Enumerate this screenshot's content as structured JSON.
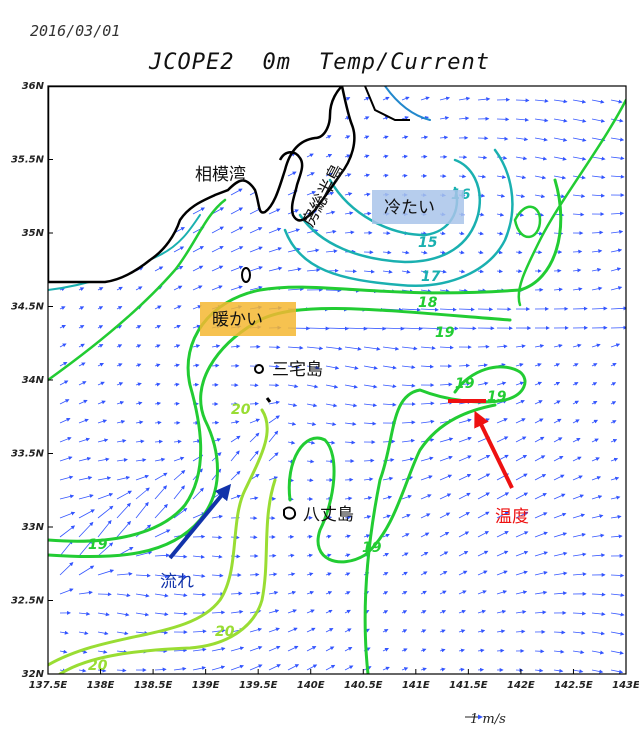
{
  "header": {
    "date": "2016/03/01",
    "model": "JCOPE2",
    "depth": "0m",
    "variables": "Temp/Current"
  },
  "axes": {
    "lat_labels": [
      "36N",
      "35.5N",
      "35N",
      "34.5N",
      "34N",
      "33.5N",
      "33N",
      "32.5N",
      "32N"
    ],
    "lon_labels": [
      "137.5E",
      "138E",
      "138.5E",
      "139E",
      "139.5E",
      "140E",
      "140.5E",
      "141E",
      "141.5E",
      "142E",
      "142.5E",
      "143E"
    ]
  },
  "contour_labels": {
    "c16": "16",
    "c15": "15",
    "c17": "17",
    "c18": "18",
    "c19a": "19",
    "c19b": "19",
    "c19c": "19",
    "c19d": "19",
    "c19e": "19",
    "c20a": "20",
    "c20b": "20",
    "c20c": "20"
  },
  "annotations": {
    "sagami_bay": "相模湾",
    "boso_peninsula": "房総半島",
    "cold": "冷たい",
    "warm": "暖かい",
    "miyakejima": "三宅島",
    "hachijojima": "八丈島",
    "flow": "流れ",
    "temperature": "温度"
  },
  "scale": {
    "label": "1 m/s"
  },
  "colors": {
    "temp_15_17": "#1ab0b0",
    "temp_18_19": "#22cc33",
    "temp_20": "#99dd33",
    "current_vector": "#3355ff",
    "flow_arrow": "#1133aa",
    "temp_arrow": "#ee1111",
    "warm_box": "#f5b731",
    "cold_box": "#a9c4ea"
  }
}
